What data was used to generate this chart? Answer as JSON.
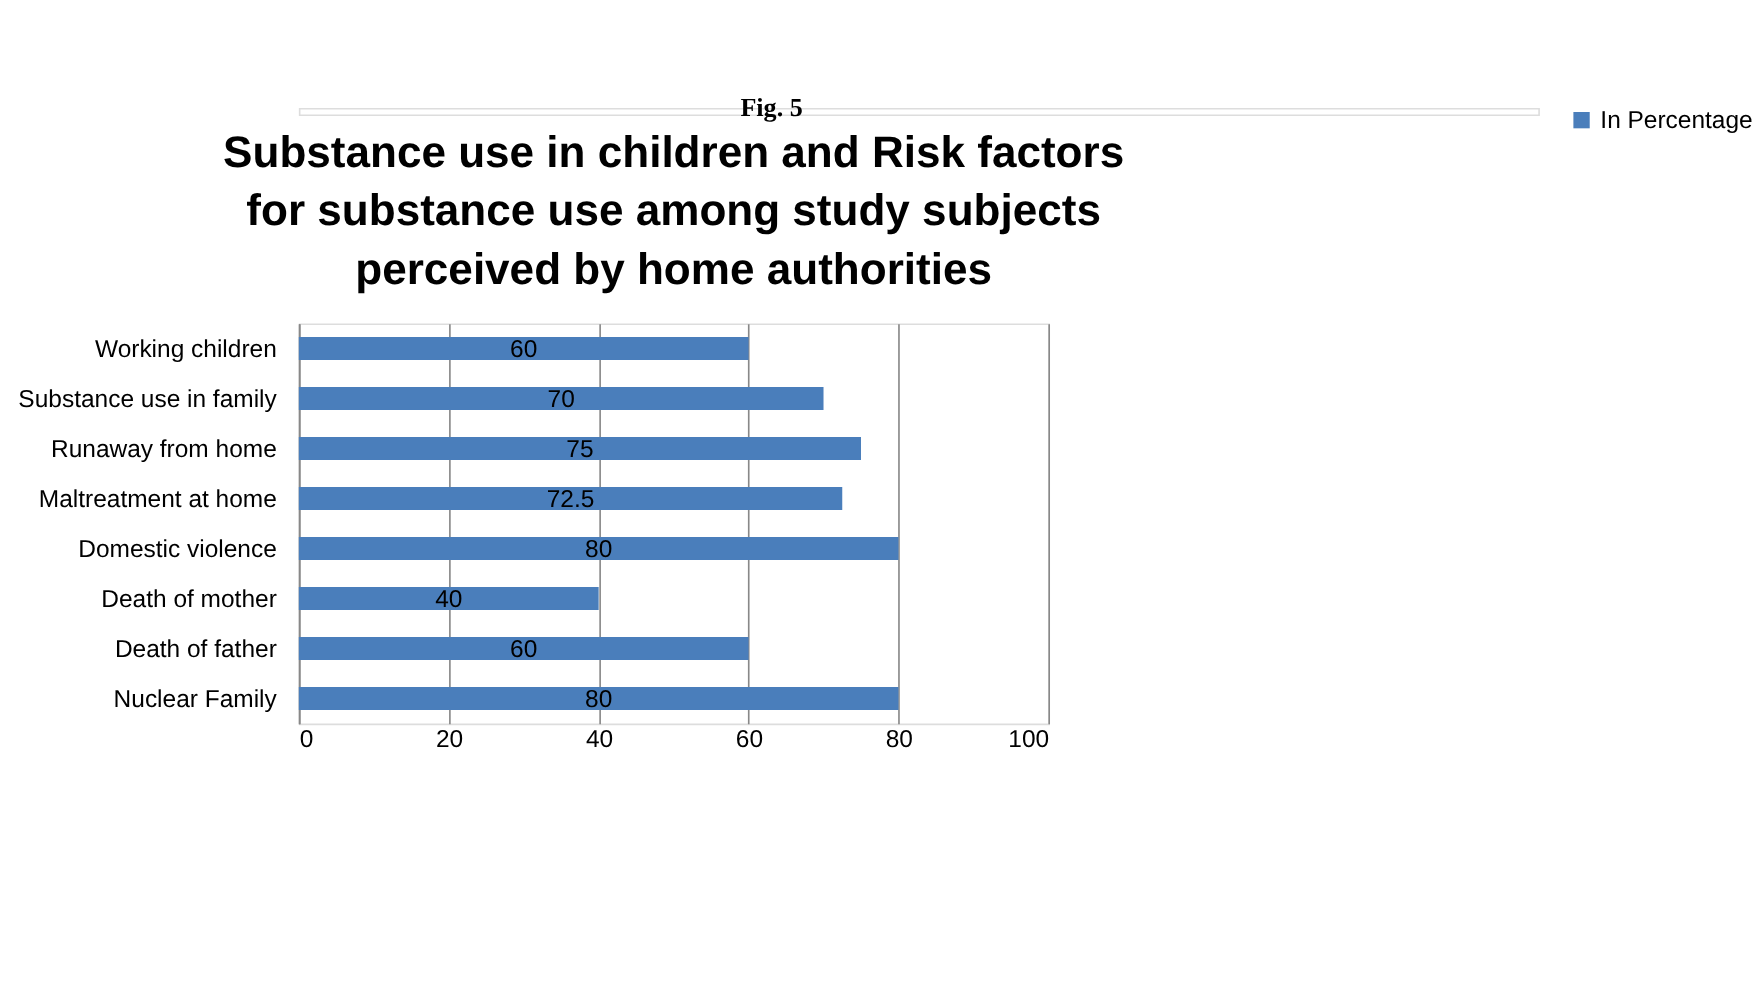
{
  "chart_data": {
    "type": "bar",
    "orientation": "horizontal",
    "title": "Substance use in children and Risk factors\nfor substance use among study subjects\nperceived by home authorities",
    "annotations": [
      "Fig. 5"
    ],
    "categories": [
      "Working children",
      "Substance use in family",
      "Runaway from home",
      "Maltreatment at home",
      "Domestic violence",
      "Death of mother",
      "Death of father",
      "Nuclear Family"
    ],
    "series": [
      {
        "name": "In Percentage",
        "color": "#4a7ebb",
        "values": [
          60,
          70,
          75,
          72.5,
          80,
          40,
          60,
          80
        ]
      }
    ],
    "xlim": [
      0,
      100
    ],
    "xticks": [
      0,
      20,
      40,
      60,
      80,
      100
    ],
    "grid": "x",
    "legend": "right",
    "data_labels": true
  }
}
